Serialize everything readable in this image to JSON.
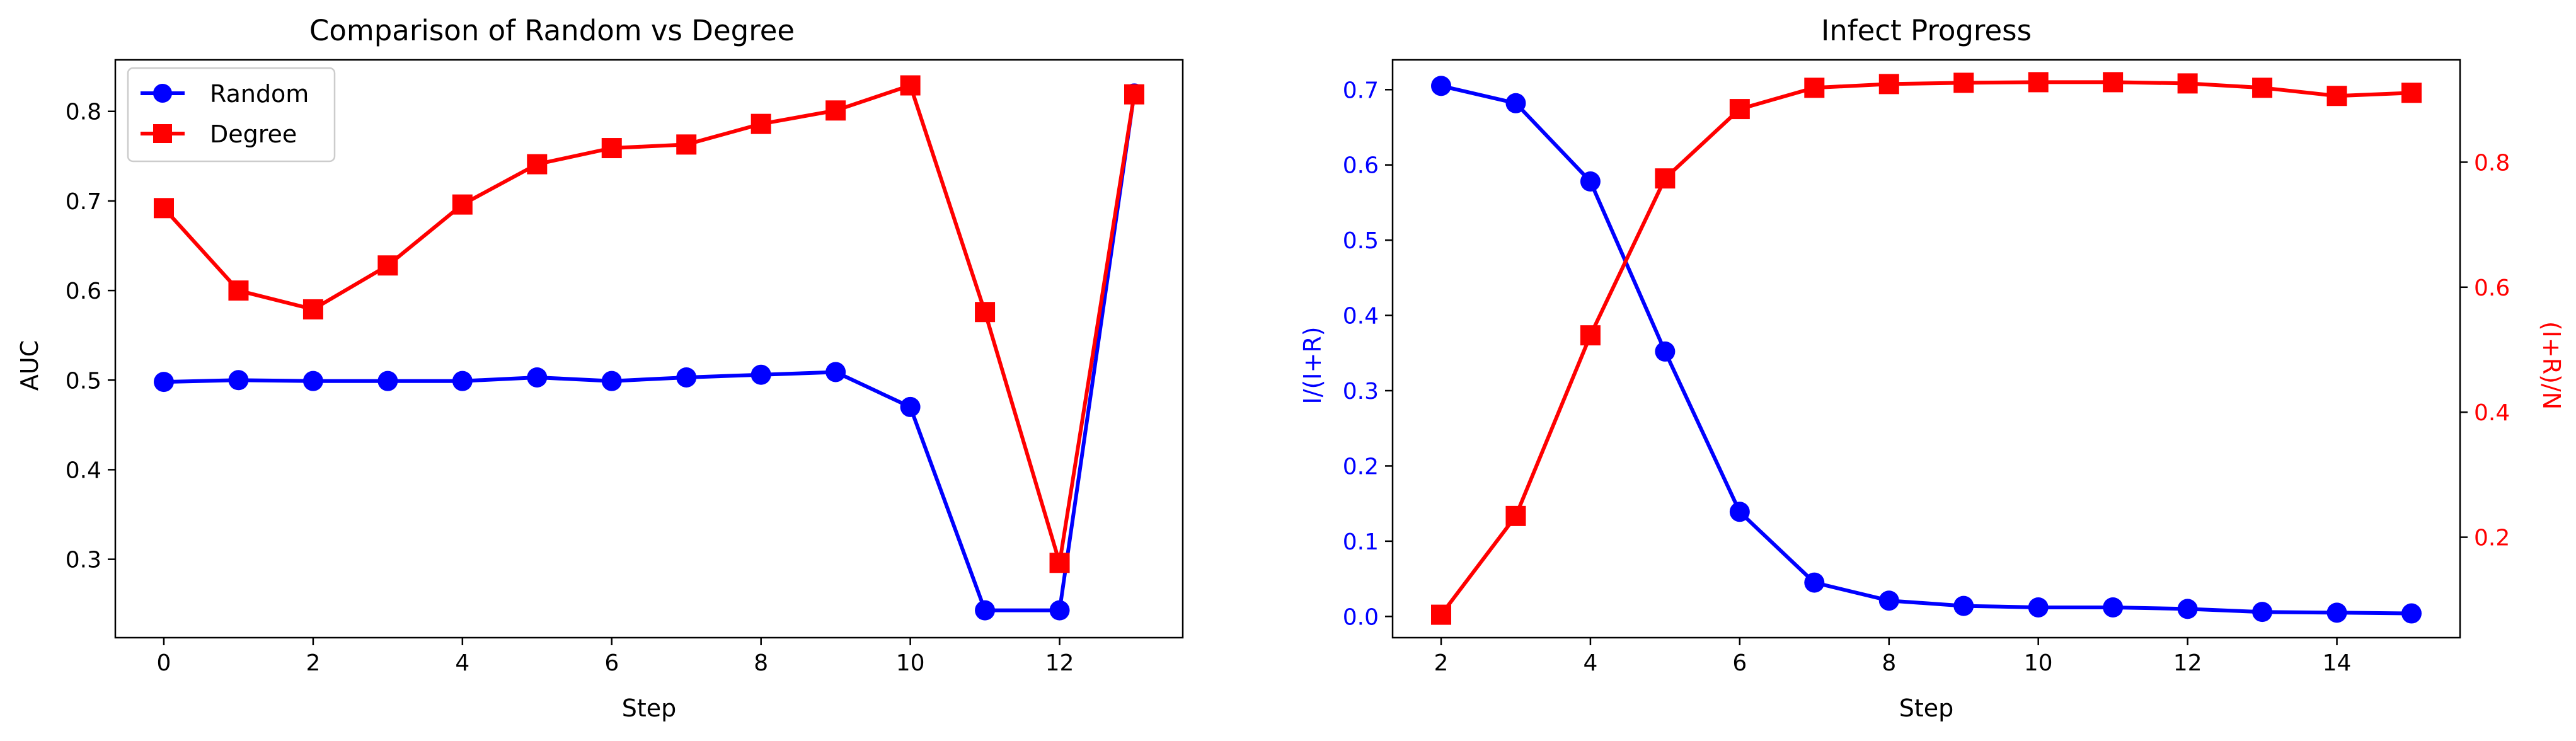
{
  "chart_data": [
    {
      "type": "line",
      "title": "Comparison of Random vs Degree",
      "xlabel": "Step",
      "ylabel": "AUC",
      "xlim": [
        -0.65,
        13.65
      ],
      "ylim": [
        0.2125,
        0.8575
      ],
      "xticks": [
        0,
        2,
        4,
        6,
        8,
        10,
        12
      ],
      "yticks": [
        0.3,
        0.4,
        0.5,
        0.6,
        0.7,
        0.8
      ],
      "grid": false,
      "legend": "top-left",
      "x": [
        0,
        1,
        2,
        3,
        4,
        5,
        6,
        7,
        8,
        9,
        10,
        11,
        12,
        13
      ],
      "series": [
        {
          "name": "Random",
          "color": "#0000ff",
          "marker": "circle",
          "values": [
            0.498,
            0.5,
            0.499,
            0.499,
            0.499,
            0.503,
            0.499,
            0.503,
            0.506,
            0.509,
            0.47,
            0.243,
            0.243,
            0.82
          ]
        },
        {
          "name": "Degree",
          "color": "#ff0000",
          "marker": "square",
          "values": [
            0.692,
            0.6,
            0.579,
            0.628,
            0.696,
            0.741,
            0.759,
            0.763,
            0.786,
            0.801,
            0.829,
            0.576,
            0.296,
            0.819
          ]
        }
      ]
    },
    {
      "type": "line",
      "title": "Infect Progress",
      "xlabel": "Step",
      "ylabel": "I/(I+R)",
      "ylabel_right": "(I+R)/N",
      "xlim": [
        1.35,
        15.65
      ],
      "ylim": [
        -0.0282,
        0.7396
      ],
      "ylim_right": [
        0.0393,
        0.9637
      ],
      "xticks": [
        2,
        4,
        6,
        8,
        10,
        12,
        14
      ],
      "yticks": [
        0.0,
        0.1,
        0.2,
        0.3,
        0.4,
        0.5,
        0.6,
        0.7
      ],
      "yticks_right": [
        0.2,
        0.4,
        0.6,
        0.8
      ],
      "left_axis_color": "#0000ff",
      "right_axis_color": "#ff0000",
      "grid": false,
      "x": [
        2,
        3,
        4,
        5,
        6,
        7,
        8,
        9,
        10,
        11,
        12,
        13,
        14,
        15
      ],
      "series": [
        {
          "axis": "left",
          "color": "#0000ff",
          "marker": "circle",
          "values": [
            0.705,
            0.682,
            0.578,
            0.352,
            0.139,
            0.045,
            0.021,
            0.014,
            0.012,
            0.012,
            0.01,
            0.006,
            0.005,
            0.004
          ]
        },
        {
          "axis": "right",
          "color": "#ff0000",
          "marker": "square",
          "values": [
            0.076,
            0.234,
            0.523,
            0.774,
            0.885,
            0.919,
            0.925,
            0.927,
            0.928,
            0.928,
            0.926,
            0.919,
            0.906,
            0.911
          ]
        }
      ]
    }
  ]
}
